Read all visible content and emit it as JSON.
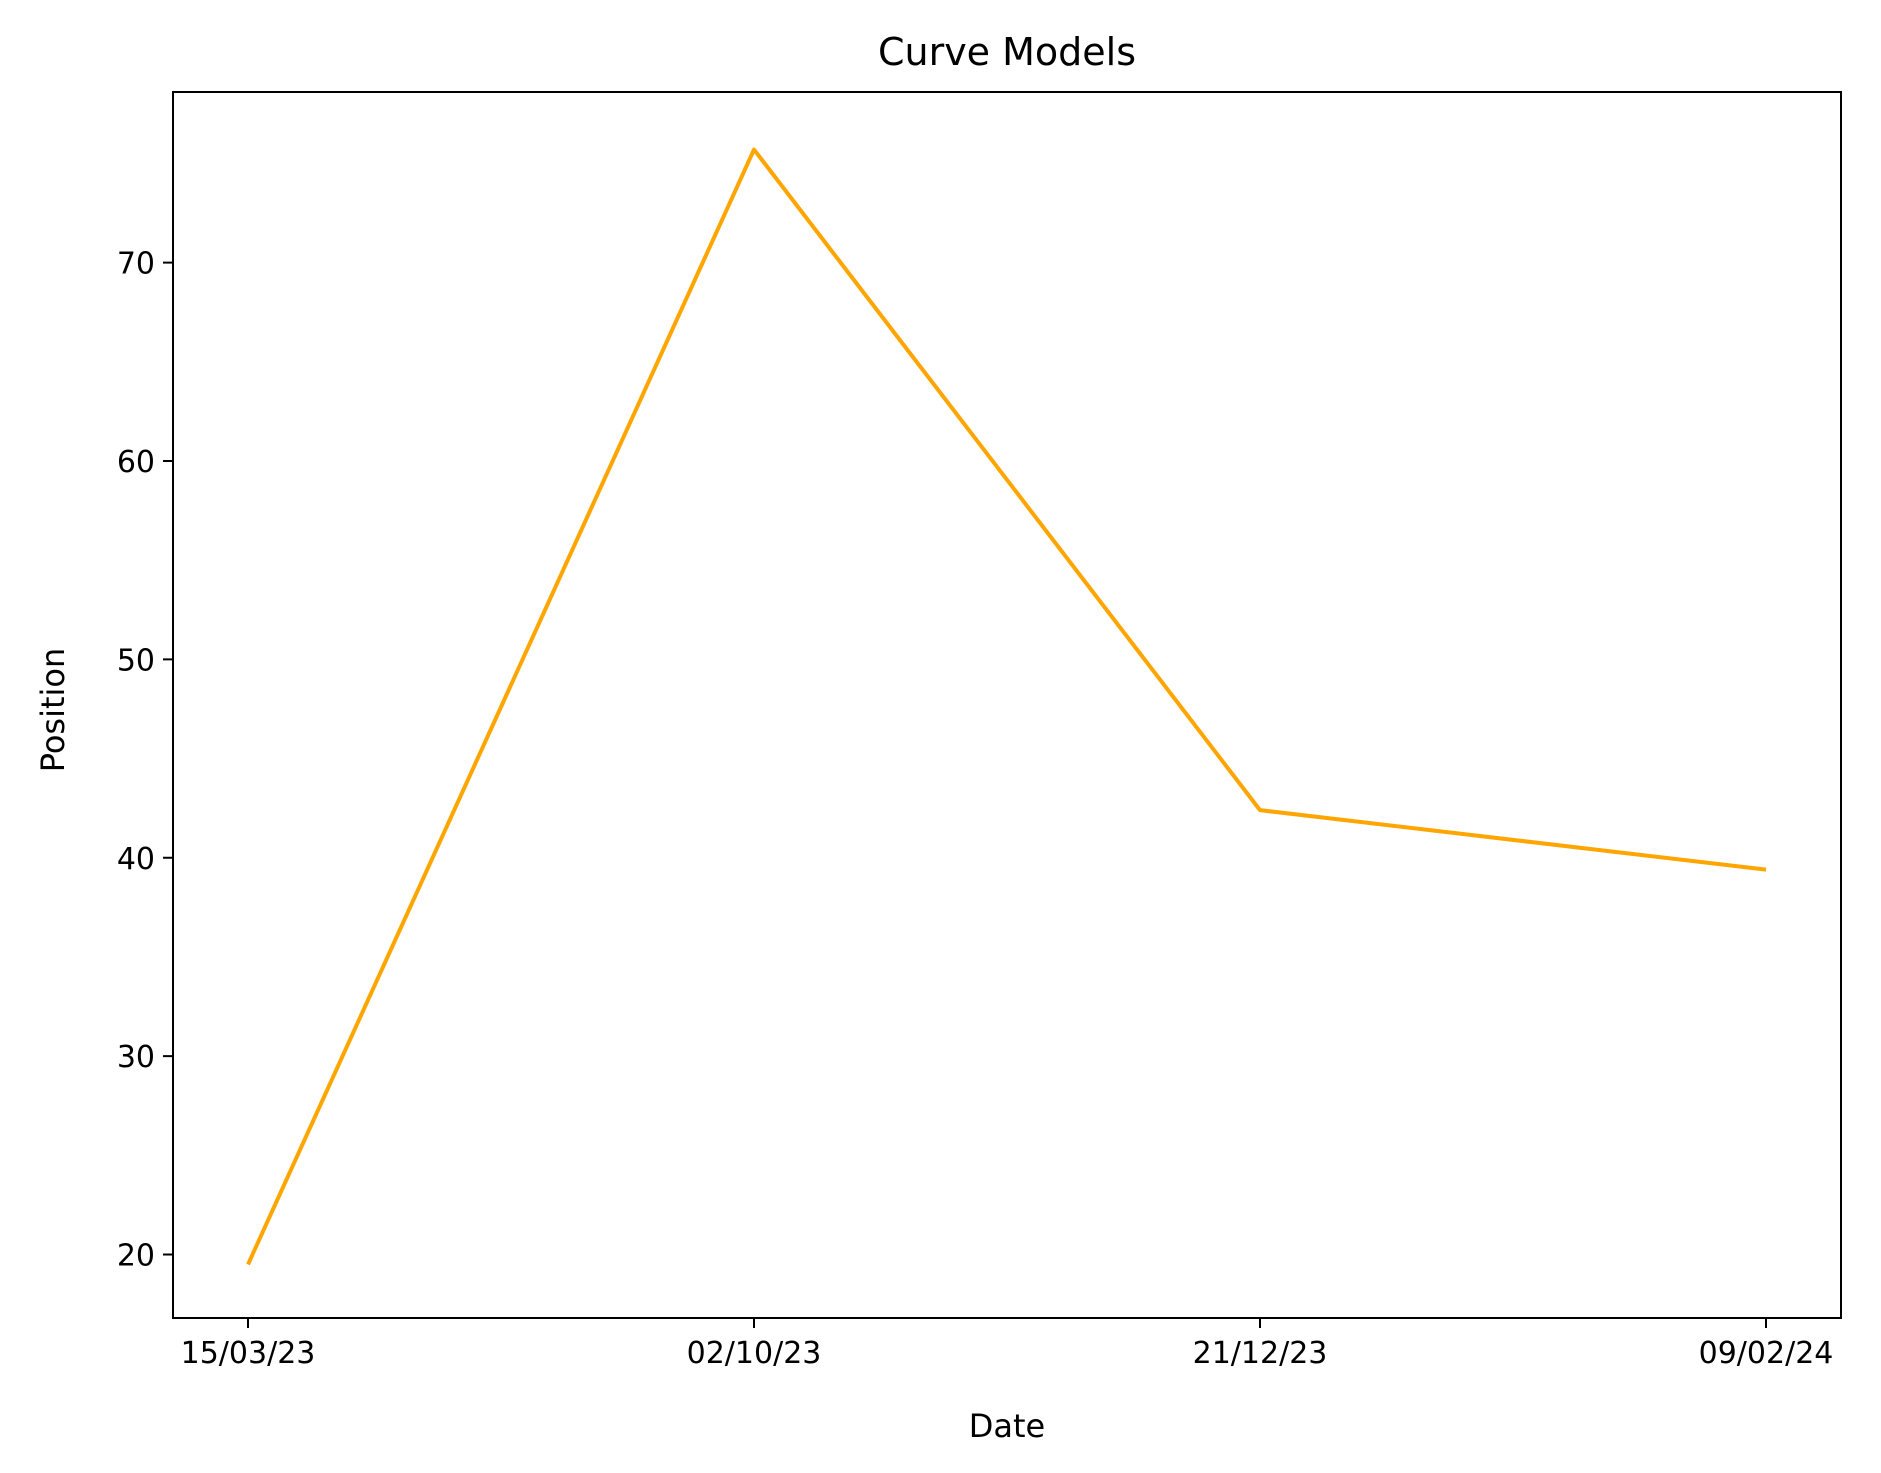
{
  "chart_data": {
    "type": "line",
    "title": "Curve Models",
    "xlabel": "Date",
    "ylabel": "Position",
    "x_tick_labels": [
      "15/03/23",
      "02/10/23",
      "21/12/23",
      "09/02/24"
    ],
    "y_ticks": [
      20,
      30,
      40,
      50,
      60,
      70
    ],
    "ylim": [
      16.8,
      78.6
    ],
    "grid": false,
    "series": [
      {
        "color": "#ffa500",
        "points": [
          {
            "x": "15/03/23",
            "y": 19.5
          },
          {
            "x": "02/10/23",
            "y": 75.7
          },
          {
            "x": "21/12/23",
            "y": 42.4
          },
          {
            "x": "09/02/24",
            "y": 39.4
          }
        ]
      }
    ]
  }
}
